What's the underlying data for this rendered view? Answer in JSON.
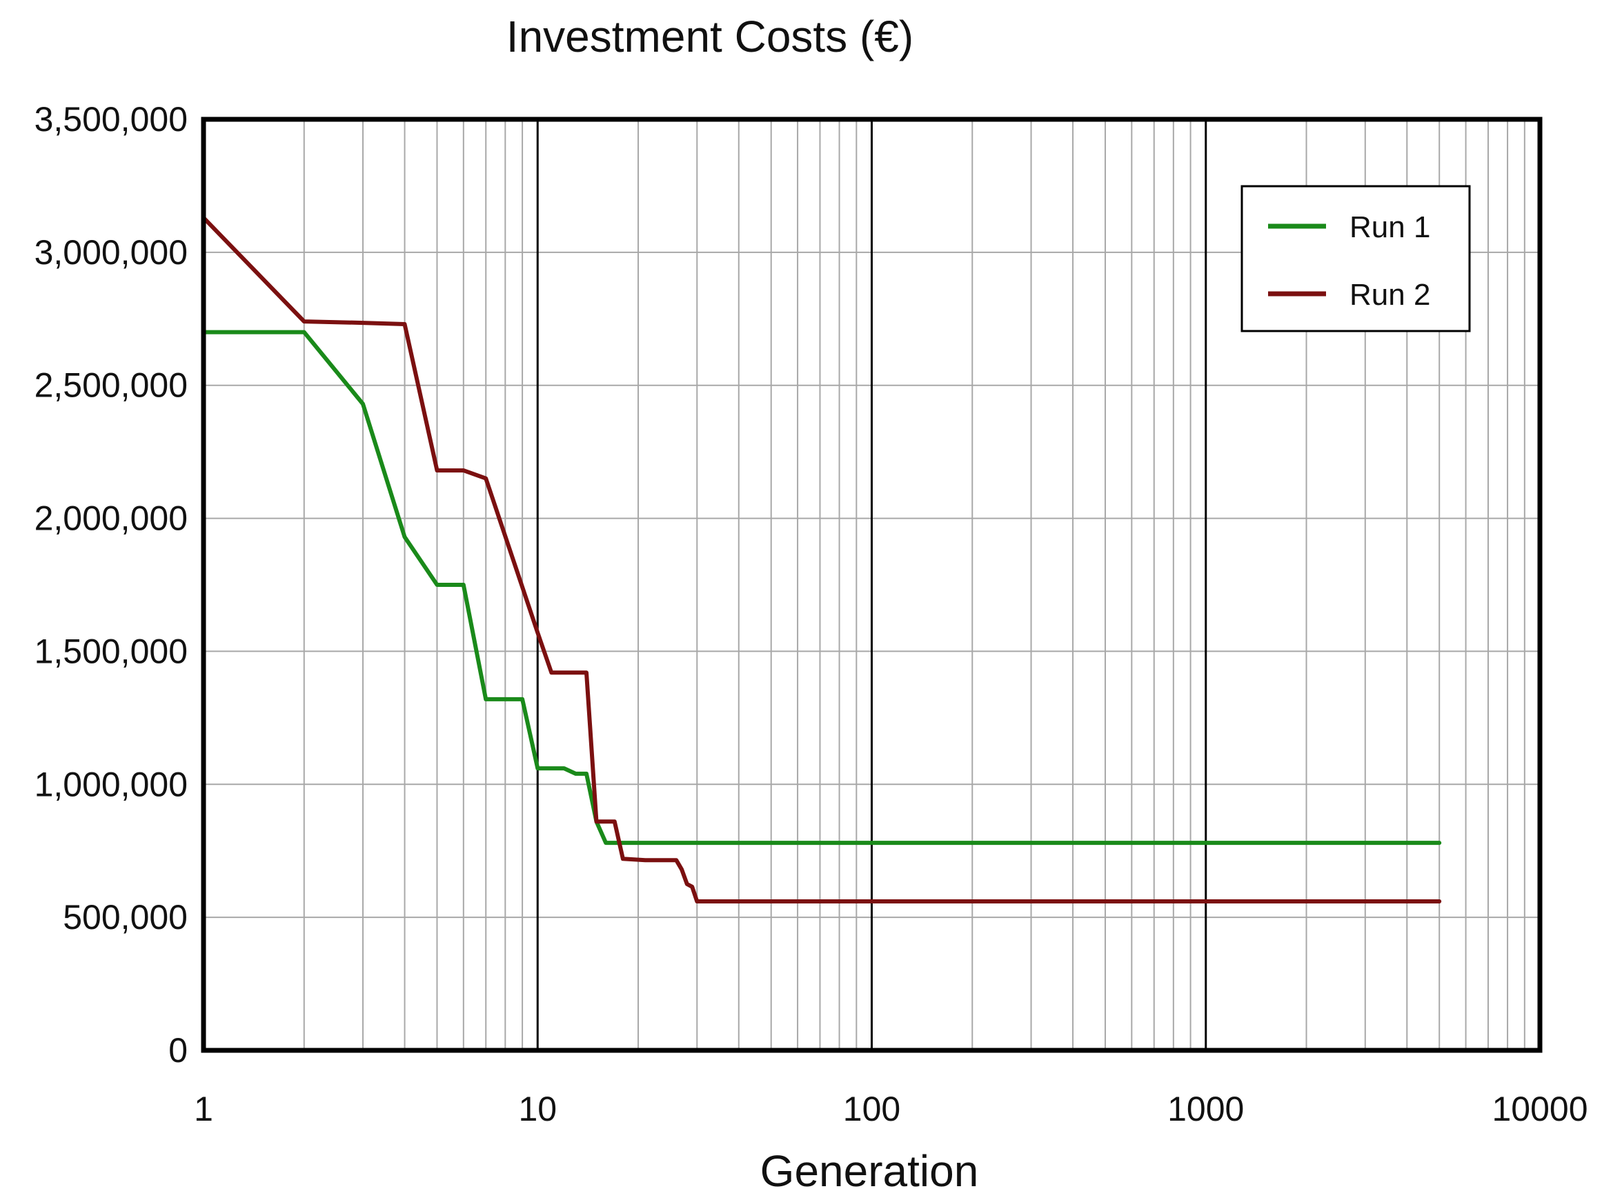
{
  "chart_data": {
    "type": "line",
    "title": "Investment Costs (€)",
    "xlabel": "Generation",
    "ylabel": "",
    "xscale": "log",
    "xlim": [
      1,
      10000
    ],
    "ylim": [
      0,
      3500000
    ],
    "x_ticks": [
      1,
      10,
      100,
      1000,
      10000
    ],
    "x_tick_labels": [
      "1",
      "10",
      "100",
      "1000",
      "10000"
    ],
    "y_ticks": [
      0,
      500000,
      1000000,
      1500000,
      2000000,
      2500000,
      3000000,
      3500000
    ],
    "y_tick_labels": [
      "0",
      "500,000",
      "1,000,000",
      "1,500,000",
      "2,000,000",
      "2,500,000",
      "3,000,000",
      "3,500,000"
    ],
    "grid": true,
    "legend_position": "top-right",
    "series": [
      {
        "name": "Run 1",
        "color": "#1a8a1a",
        "points": [
          [
            1,
            2700000
          ],
          [
            2,
            2700000
          ],
          [
            3,
            2430000
          ],
          [
            4,
            1930000
          ],
          [
            5,
            1750000
          ],
          [
            6,
            1750000
          ],
          [
            7,
            1320000
          ],
          [
            9,
            1320000
          ],
          [
            10,
            1060000
          ],
          [
            11,
            1060000
          ],
          [
            12,
            1060000
          ],
          [
            13,
            1040000
          ],
          [
            14,
            1040000
          ],
          [
            15,
            860000
          ],
          [
            16,
            780000
          ],
          [
            20,
            780000
          ],
          [
            100,
            780000
          ],
          [
            1000,
            780000
          ],
          [
            5000,
            780000
          ]
        ]
      },
      {
        "name": "Run 2",
        "color": "#7b1010",
        "points": [
          [
            1,
            3130000
          ],
          [
            2,
            2740000
          ],
          [
            3,
            2735000
          ],
          [
            4,
            2730000
          ],
          [
            5,
            2180000
          ],
          [
            6,
            2180000
          ],
          [
            7,
            2150000
          ],
          [
            10,
            1570000
          ],
          [
            11,
            1420000
          ],
          [
            14,
            1420000
          ],
          [
            15,
            860000
          ],
          [
            17,
            860000
          ],
          [
            18,
            720000
          ],
          [
            21,
            715000
          ],
          [
            26,
            715000
          ],
          [
            27,
            680000
          ],
          [
            28,
            625000
          ],
          [
            29,
            615000
          ],
          [
            30,
            560000
          ],
          [
            100,
            560000
          ],
          [
            1000,
            560000
          ],
          [
            5000,
            560000
          ]
        ]
      }
    ]
  }
}
